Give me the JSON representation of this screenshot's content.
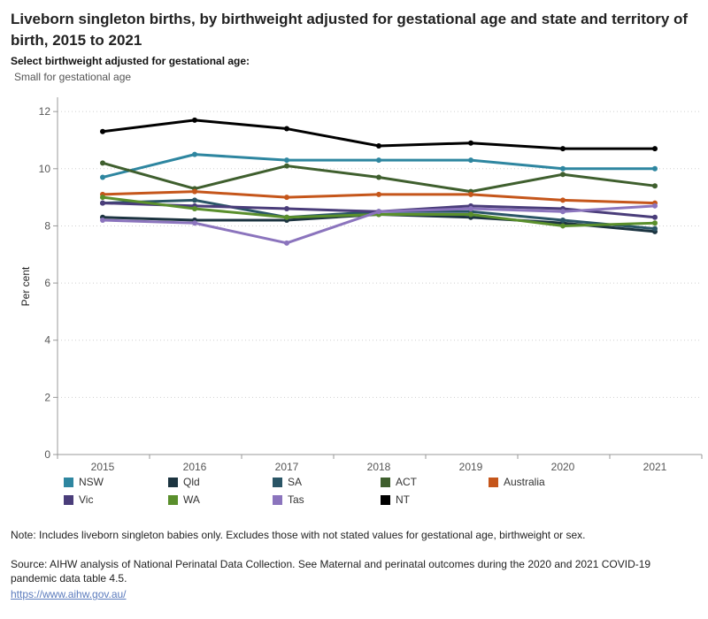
{
  "header": {
    "title": "Liveborn singleton births, by birthweight adjusted for gestational age and state and territory of birth, 2015 to 2021"
  },
  "filter": {
    "label": "Select birthweight adjusted for gestational age:",
    "value": "Small for gestational age"
  },
  "chart_data": {
    "type": "line",
    "title": "Liveborn singleton births, by birthweight adjusted for gestational age and state and territory of birth, 2015 to 2021",
    "xlabel": "",
    "ylabel": "Per cent",
    "x": [
      "2015",
      "2016",
      "2017",
      "2018",
      "2019",
      "2020",
      "2021"
    ],
    "yticks": [
      0,
      2,
      4,
      6,
      8,
      10,
      12
    ],
    "ylim": [
      0,
      12.5
    ],
    "grid": "horizontal dotted",
    "legend_position": "bottom",
    "series": [
      {
        "name": "NSW",
        "color": "#2e86a0",
        "values": [
          9.7,
          10.5,
          10.3,
          10.3,
          10.3,
          10.0,
          10.0
        ]
      },
      {
        "name": "Qld",
        "color": "#1c3440",
        "values": [
          8.3,
          8.2,
          8.2,
          8.4,
          8.3,
          8.1,
          7.8
        ]
      },
      {
        "name": "SA",
        "color": "#2a5566",
        "values": [
          8.8,
          8.9,
          8.3,
          8.5,
          8.5,
          8.2,
          7.9
        ]
      },
      {
        "name": "ACT",
        "color": "#3f5f2e",
        "values": [
          10.2,
          9.3,
          10.1,
          9.7,
          9.2,
          9.8,
          9.4
        ]
      },
      {
        "name": "Australia",
        "color": "#c5561b",
        "values": [
          9.1,
          9.2,
          9.0,
          9.1,
          9.1,
          8.9,
          8.8
        ]
      },
      {
        "name": "Vic",
        "color": "#4a3d7a",
        "values": [
          8.8,
          8.7,
          8.6,
          8.5,
          8.7,
          8.6,
          8.3
        ]
      },
      {
        "name": "WA",
        "color": "#5a8f2c",
        "values": [
          9.0,
          8.6,
          8.3,
          8.4,
          8.4,
          8.0,
          8.1
        ]
      },
      {
        "name": "Tas",
        "color": "#8b74bd",
        "values": [
          8.2,
          8.1,
          7.4,
          8.5,
          8.6,
          8.5,
          8.7
        ]
      },
      {
        "name": "NT",
        "color": "#000000",
        "values": [
          11.3,
          11.7,
          11.4,
          10.8,
          10.9,
          10.7,
          10.7
        ]
      }
    ]
  },
  "footer": {
    "note": "Note: Includes liveborn singleton babies only. Excludes those with not stated values for gestational age, birthweight or sex.",
    "source": "Source: AIHW analysis of National Perinatal Data Collection. See Maternal and perinatal outcomes during the 2020 and 2021 COVID-19 pandemic data table 4.5.",
    "link": "https://www.aihw.gov.au/"
  }
}
